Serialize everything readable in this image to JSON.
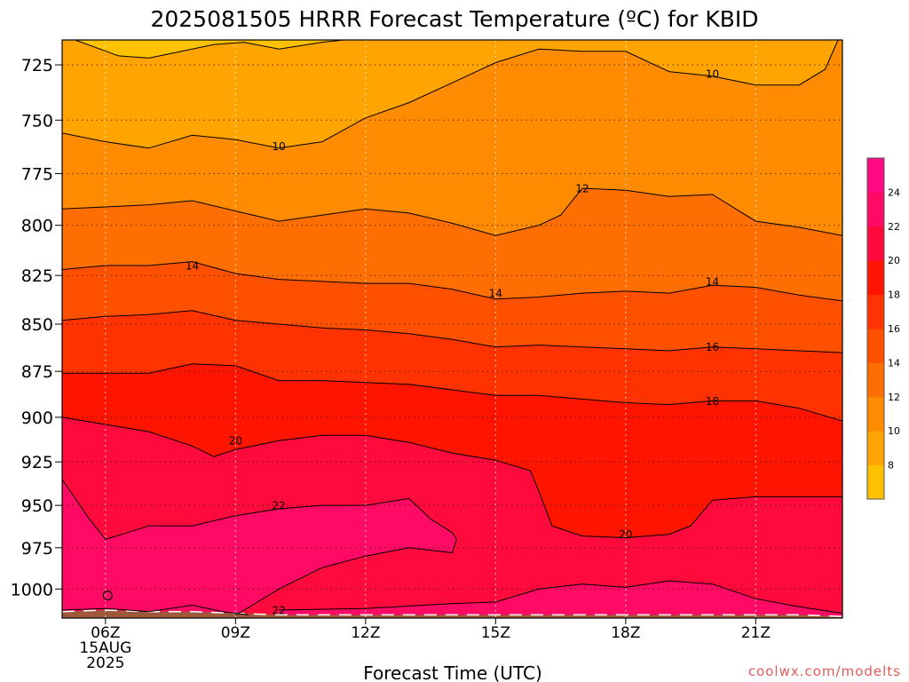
{
  "chart_data": {
    "type": "filled-contour",
    "title": "2025081505 HRRR Forecast Temperature (ºC) for KBID",
    "xlabel": "Forecast Time (UTC)",
    "ylabel": "",
    "watermark": "coolwx.com/modelts",
    "y_scale": "log-pressure",
    "y_reversed": true,
    "y_range_hPa": [
      714,
      1018
    ],
    "y_ticks": [
      {
        "label": "725",
        "value": 725
      },
      {
        "label": "750",
        "value": 750
      },
      {
        "label": "775",
        "value": 775
      },
      {
        "label": "800",
        "value": 800
      },
      {
        "label": "825",
        "value": 825
      },
      {
        "label": "850",
        "value": 850
      },
      {
        "label": "875",
        "value": 875
      },
      {
        "label": "900",
        "value": 900
      },
      {
        "label": "925",
        "value": 925
      },
      {
        "label": "950",
        "value": 950
      },
      {
        "label": "975",
        "value": 975
      },
      {
        "label": "1000",
        "value": 1000
      }
    ],
    "x_range_hours_utc": [
      5,
      23
    ],
    "x_ticks": [
      {
        "label": "06Z",
        "hour": 6,
        "date_label": "15AUG",
        "year_label": "2025"
      },
      {
        "label": "09Z",
        "hour": 9
      },
      {
        "label": "12Z",
        "hour": 12
      },
      {
        "label": "15Z",
        "hour": 15
      },
      {
        "label": "18Z",
        "hour": 18
      },
      {
        "label": "21Z",
        "hour": 21
      }
    ],
    "grid": true,
    "terrain_color": "#a0583a",
    "colorbar": {
      "placement": "right",
      "bins": [
        {
          "from": 6,
          "to": 8,
          "color": "#ffc200"
        },
        {
          "from": 8,
          "to": 10,
          "color": "#ffa400"
        },
        {
          "from": 10,
          "to": 12,
          "color": "#ff8c00"
        },
        {
          "from": 12,
          "to": 14,
          "color": "#ff6e00"
        },
        {
          "from": 14,
          "to": 16,
          "color": "#ff5000"
        },
        {
          "from": 16,
          "to": 18,
          "color": "#ff3200"
        },
        {
          "from": 18,
          "to": 20,
          "color": "#ff1400"
        },
        {
          "from": 20,
          "to": 22,
          "color": "#ff0a3c"
        },
        {
          "from": 22,
          "to": 24,
          "color": "#ff0a64"
        },
        {
          "from": 24,
          "to": 26,
          "color": "#ff0a82"
        }
      ],
      "tick_labels": [
        "8",
        "10",
        "12",
        "14",
        "16",
        "18",
        "20",
        "22",
        "24"
      ]
    },
    "contours": [
      {
        "value": 8,
        "color": "#ffc200",
        "label": "",
        "label_at": null,
        "points": [
          [
            5.3,
            714
          ],
          [
            6.3,
            721
          ],
          [
            7.0,
            722
          ],
          [
            7.5,
            720
          ],
          [
            8.5,
            716
          ],
          [
            9.2,
            715
          ],
          [
            10.0,
            718
          ],
          [
            11.0,
            715
          ],
          [
            11.5,
            714
          ]
        ]
      },
      {
        "value": 10,
        "color": "#ffa400",
        "label": "10",
        "label_at": [
          10.0,
          762
        ],
        "points": [
          [
            5.0,
            756
          ],
          [
            6.0,
            760
          ],
          [
            7.0,
            763
          ],
          [
            8.0,
            757
          ],
          [
            9.0,
            759
          ],
          [
            10.0,
            763
          ],
          [
            11.0,
            760
          ],
          [
            12.0,
            749
          ],
          [
            13.0,
            742
          ],
          [
            14.0,
            733
          ],
          [
            15.0,
            724
          ],
          [
            16.0,
            718
          ],
          [
            17.0,
            719
          ],
          [
            18.0,
            719
          ],
          [
            19.0,
            728
          ],
          [
            20.0,
            730
          ],
          [
            21.0,
            734
          ],
          [
            22.0,
            734
          ],
          [
            22.6,
            727
          ],
          [
            22.9,
            714
          ]
        ]
      },
      {
        "value": 12,
        "color": "#ff8c00",
        "label": "12",
        "label_at": [
          17.0,
          782
        ],
        "points": [
          [
            5.0,
            792
          ],
          [
            6.0,
            791
          ],
          [
            7.0,
            790
          ],
          [
            8.0,
            788
          ],
          [
            9.0,
            793
          ],
          [
            10.0,
            798
          ],
          [
            11.0,
            795
          ],
          [
            12.0,
            792
          ],
          [
            13.0,
            794
          ],
          [
            14.0,
            799
          ],
          [
            15.0,
            805
          ],
          [
            16.0,
            800
          ],
          [
            16.5,
            795
          ],
          [
            17.0,
            782
          ],
          [
            18.0,
            783
          ],
          [
            19.0,
            786
          ],
          [
            20.0,
            785
          ],
          [
            21.0,
            798
          ],
          [
            22.0,
            801
          ],
          [
            23.0,
            805
          ]
        ]
      },
      {
        "value": 14,
        "color": "#ff6e00",
        "label": "14",
        "label_at": [
          8.0,
          820
        ],
        "points": [
          [
            5.0,
            822
          ],
          [
            6.0,
            820
          ],
          [
            7.0,
            820
          ],
          [
            8.0,
            818
          ],
          [
            9.0,
            824
          ],
          [
            10.0,
            827
          ],
          [
            11.0,
            828
          ],
          [
            12.0,
            829
          ],
          [
            13.0,
            829
          ],
          [
            14.0,
            832
          ],
          [
            15.0,
            837
          ],
          [
            16.0,
            836
          ],
          [
            17.0,
            834
          ],
          [
            18.0,
            833
          ],
          [
            19.0,
            834
          ],
          [
            20.0,
            830
          ],
          [
            21.0,
            831
          ],
          [
            22.0,
            835
          ],
          [
            23.0,
            838
          ]
        ]
      },
      {
        "value": 16,
        "color": "#ff5000",
        "label": "16",
        "label_at": [
          20.0,
          862
        ],
        "points": [
          [
            5.0,
            848
          ],
          [
            6.0,
            846
          ],
          [
            7.0,
            845
          ],
          [
            8.0,
            843
          ],
          [
            9.0,
            848
          ],
          [
            10.0,
            850
          ],
          [
            11.0,
            852
          ],
          [
            12.0,
            853
          ],
          [
            13.0,
            855
          ],
          [
            14.0,
            858
          ],
          [
            15.0,
            862
          ],
          [
            16.0,
            861
          ],
          [
            17.0,
            862
          ],
          [
            18.0,
            863
          ],
          [
            19.0,
            864
          ],
          [
            20.0,
            862
          ],
          [
            21.0,
            863
          ],
          [
            22.0,
            864
          ],
          [
            23.0,
            865
          ]
        ]
      },
      {
        "value": 18,
        "color": "#ff3200",
        "label": "18",
        "label_at": [
          20.0,
          891
        ],
        "points": [
          [
            5.0,
            876
          ],
          [
            6.0,
            876
          ],
          [
            7.0,
            876
          ],
          [
            8.0,
            871
          ],
          [
            9.0,
            872
          ],
          [
            10.0,
            880
          ],
          [
            11.0,
            880
          ],
          [
            12.0,
            881
          ],
          [
            13.0,
            882
          ],
          [
            14.0,
            885
          ],
          [
            15.0,
            888
          ],
          [
            16.0,
            888
          ],
          [
            17.0,
            890
          ],
          [
            18.0,
            892
          ],
          [
            19.0,
            893
          ],
          [
            20.0,
            891
          ],
          [
            21.0,
            891
          ],
          [
            22.0,
            895
          ],
          [
            23.0,
            902
          ]
        ]
      },
      {
        "value": 20,
        "color": "#ff1400",
        "label": "20",
        "label_at": [
          9.0,
          913
        ],
        "points": [
          [
            5.0,
            900
          ],
          [
            6.0,
            904
          ],
          [
            7.0,
            908
          ],
          [
            8.0,
            916
          ],
          [
            8.5,
            922
          ],
          [
            9.0,
            918
          ],
          [
            10.0,
            913
          ],
          [
            11.0,
            910
          ],
          [
            12.0,
            910
          ],
          [
            13.0,
            914
          ],
          [
            14.0,
            920
          ],
          [
            15.0,
            924
          ],
          [
            15.8,
            930
          ],
          [
            16.0,
            942
          ],
          [
            16.3,
            962
          ],
          [
            17.0,
            968
          ],
          [
            18.0,
            969
          ],
          [
            19.0,
            967
          ],
          [
            19.5,
            962
          ],
          [
            20.0,
            947
          ],
          [
            21.0,
            945
          ],
          [
            22.0,
            945
          ],
          [
            23.0,
            945
          ]
        ]
      },
      {
        "value": 22,
        "color": "#ff0a3c",
        "label": "22",
        "label_at": [
          10.0,
          1013
        ],
        "points": [
          [
            5.0,
            935
          ],
          [
            5.6,
            957
          ],
          [
            6.0,
            970
          ],
          [
            7.0,
            962
          ],
          [
            8.0,
            962
          ],
          [
            9.0,
            956
          ],
          [
            10.0,
            952
          ],
          [
            11.0,
            950
          ],
          [
            12.0,
            950
          ],
          [
            13.0,
            946
          ],
          [
            13.5,
            958
          ],
          [
            14.0,
            966
          ],
          [
            14.1,
            970
          ],
          [
            14.0,
            978
          ],
          [
            13.0,
            975
          ],
          [
            12.0,
            980
          ],
          [
            11.0,
            987
          ],
          [
            10.0,
            1000
          ],
          [
            9.2,
            1013
          ],
          [
            9.0,
            1016
          ]
        ]
      },
      {
        "value": 22,
        "color": "#ff0a3c",
        "label": "",
        "label_at": null,
        "points": [
          [
            10.0,
            1013
          ],
          [
            12.0,
            1012
          ],
          [
            14.0,
            1009
          ],
          [
            15.0,
            1008
          ],
          [
            16.0,
            1000
          ],
          [
            17.0,
            997
          ],
          [
            18.0,
            999
          ],
          [
            19.0,
            995
          ],
          [
            20.0,
            997
          ],
          [
            21.0,
            1006
          ],
          [
            22.0,
            1011
          ],
          [
            23.0,
            1015
          ]
        ]
      },
      {
        "value": 22,
        "color": "#ff0a3c",
        "label": "",
        "label_at": null,
        "points": [
          [
            5.0,
            1013
          ],
          [
            6.0,
            1012
          ],
          [
            7.0,
            1014
          ],
          [
            8.0,
            1010
          ],
          [
            8.7,
            1014
          ],
          [
            9.3,
            1016
          ]
        ]
      }
    ],
    "surface_pressure": [
      [
        5.0,
        1014
      ],
      [
        6.0,
        1013
      ],
      [
        7.0,
        1014
      ],
      [
        8.0,
        1014
      ],
      [
        9.0,
        1015
      ],
      [
        10.0,
        1016
      ],
      [
        11.0,
        1016
      ],
      [
        12.0,
        1016
      ],
      [
        13.0,
        1016
      ],
      [
        14.0,
        1016
      ],
      [
        15.0,
        1016
      ],
      [
        16.0,
        1016
      ],
      [
        17.0,
        1016
      ],
      [
        18.0,
        1016
      ],
      [
        19.0,
        1016
      ],
      [
        20.0,
        1016
      ],
      [
        21.0,
        1016
      ],
      [
        22.0,
        1016
      ],
      [
        23.0,
        1017
      ]
    ]
  }
}
